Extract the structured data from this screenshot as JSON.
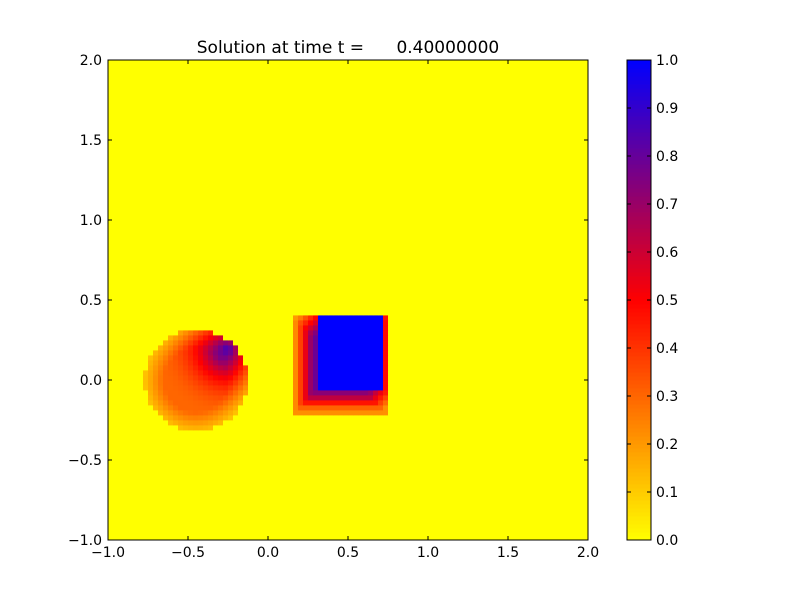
{
  "chart_data": {
    "type": "heatmap",
    "title": "Solution at time t =      0.40000000",
    "xlabel": "",
    "ylabel": "",
    "xlim": [
      -1.0,
      2.0
    ],
    "ylim": [
      -1.0,
      2.0
    ],
    "xticks": [
      "−1.0",
      "−0.5",
      "0.0",
      "0.5",
      "1.0",
      "1.5",
      "2.0"
    ],
    "xtick_values": [
      -1.0,
      -0.5,
      0.0,
      0.5,
      1.0,
      1.5,
      2.0
    ],
    "yticks": [
      "−1.0",
      "−0.5",
      "0.0",
      "0.5",
      "1.0",
      "1.5",
      "2.0"
    ],
    "ytick_values": [
      -1.0,
      -0.5,
      0.0,
      0.5,
      1.0,
      1.5,
      2.0
    ],
    "grid": false,
    "colormap": {
      "stops": [
        {
          "value": 0.0,
          "color": "#ffff00"
        },
        {
          "value": 0.5,
          "color": "#ff0000"
        },
        {
          "value": 1.0,
          "color": "#0000ff"
        }
      ]
    },
    "colorbar": {
      "range": [
        0.0,
        1.0
      ],
      "ticks": [
        "0.0",
        "0.1",
        "0.2",
        "0.3",
        "0.4",
        "0.5",
        "0.6",
        "0.7",
        "0.8",
        "0.9",
        "1.0"
      ],
      "tick_values": [
        0.0,
        0.1,
        0.2,
        0.3,
        0.4,
        0.5,
        0.6,
        0.7,
        0.8,
        0.9,
        1.0
      ]
    },
    "features": [
      {
        "shape": "disc",
        "center": [
          -0.45,
          0.0
        ],
        "radius": 0.32,
        "value_at_edge": 0.3,
        "value_peak": 1.0,
        "peak_location": [
          -0.25,
          0.2
        ]
      },
      {
        "shape": "square",
        "x_range": [
          0.15,
          0.75
        ],
        "y_range": [
          -0.22,
          0.4
        ],
        "value_inner": 1.0,
        "inner_x_range": [
          0.3,
          0.72
        ],
        "inner_y_range": [
          -0.05,
          0.4
        ],
        "value_border": 0.5
      }
    ],
    "background_value": 0.0
  }
}
